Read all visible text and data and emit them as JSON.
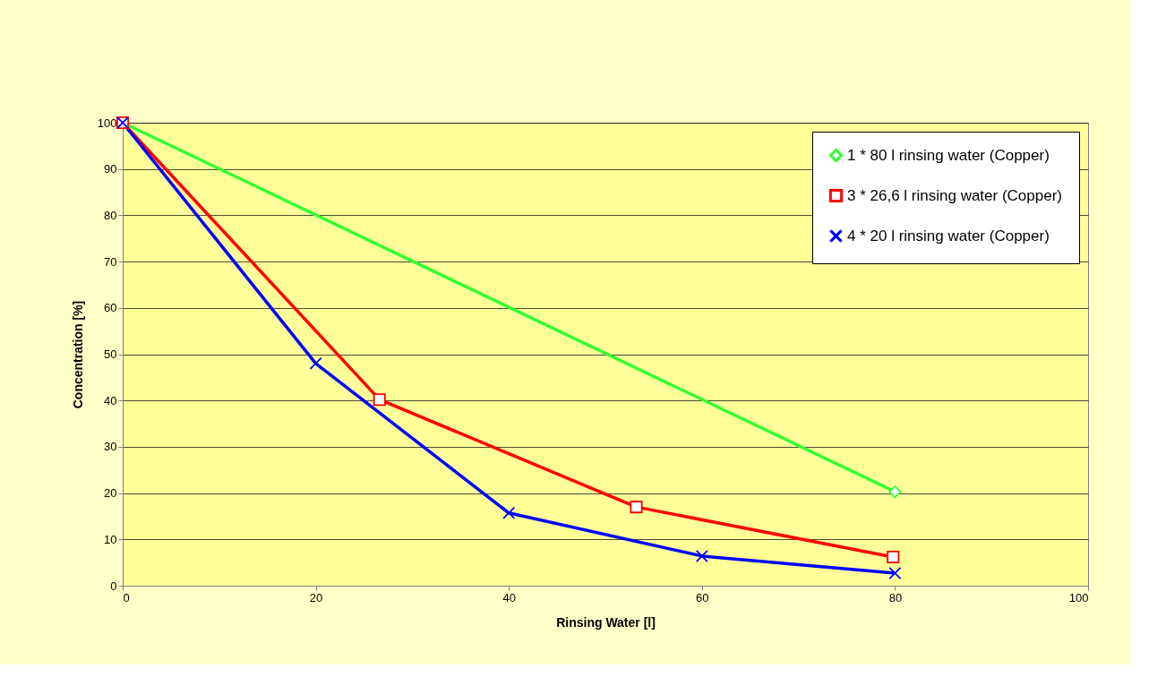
{
  "chart_data": {
    "type": "line",
    "xlabel": "Rinsing Water [l]",
    "ylabel": "Concentration [%]",
    "xlim": [
      0,
      100
    ],
    "xticks": [
      0,
      20,
      40,
      60,
      80,
      100
    ],
    "ylim": [
      0,
      100
    ],
    "yticks": [
      0,
      10,
      20,
      30,
      40,
      50,
      60,
      70,
      80,
      90,
      100
    ],
    "grid": "y",
    "legend": "top right",
    "series": [
      {
        "name": "1 * 80 l rinsing water (Copper)",
        "color": "#33ff33",
        "marker": "diamond",
        "x": [
          0,
          80
        ],
        "values": [
          100,
          20.3
        ]
      },
      {
        "name": "3 * 26,6 l rinsing water (Copper)",
        "color": "#ff0000",
        "marker": "square",
        "x": [
          0,
          26.6,
          53.2,
          79.8
        ],
        "values": [
          100,
          40.2,
          17.0,
          6.2
        ]
      },
      {
        "name": "4 * 20 l rinsing water (Copper)",
        "color": "#0000ff",
        "marker": "cross",
        "x": [
          0,
          20,
          40,
          60,
          80
        ],
        "values": [
          100,
          48,
          15.7,
          6.4,
          2.7
        ]
      }
    ]
  }
}
